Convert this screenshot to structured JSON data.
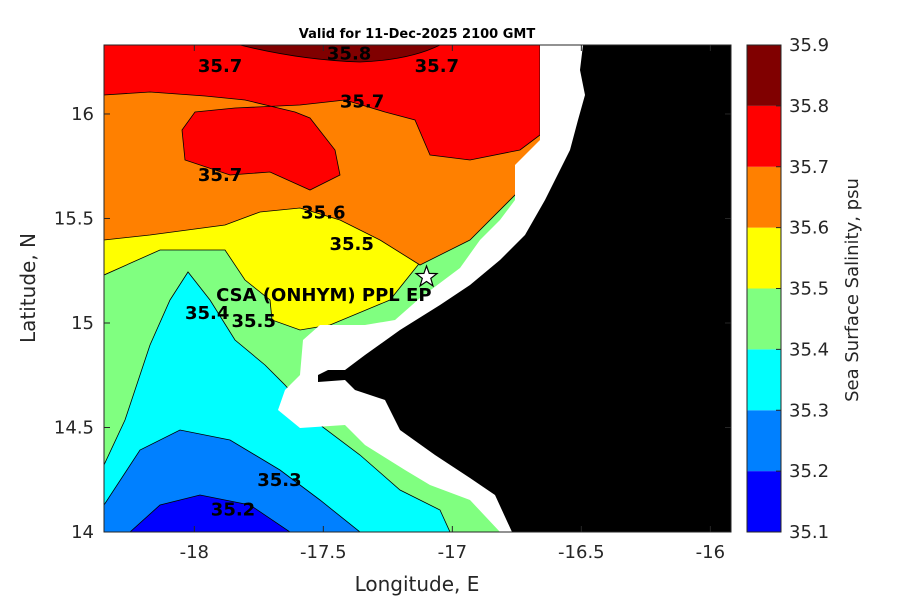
{
  "chart_data": {
    "type": "heatmap",
    "title": "Valid for 11-Dec-2025 2100 GMT",
    "xlabel": "Longitude, E",
    "ylabel": "Latitude, N",
    "xlim": [
      -18.35,
      -15.92
    ],
    "ylim": [
      14.0,
      16.33
    ],
    "x_ticks": [
      -18,
      -17.5,
      -17,
      -16.5,
      -16
    ],
    "x_tick_labels": [
      "-18",
      "-17.5",
      "-17",
      "-16.5",
      "-16"
    ],
    "y_ticks": [
      14,
      14.5,
      15,
      15.5,
      16
    ],
    "y_tick_labels": [
      "14",
      "14.5",
      "15",
      "15.5",
      "16"
    ],
    "colorbar": {
      "label": "Sea Surface Salinity, psu",
      "ticks": [
        "35.1",
        "35.2",
        "35.3",
        "35.4",
        "35.5",
        "35.6",
        "35.7",
        "35.8",
        "35.9"
      ],
      "levels": [
        {
          "min": 35.1,
          "max": 35.2,
          "color": "#0000ff"
        },
        {
          "min": 35.2,
          "max": 35.3,
          "color": "#0080ff"
        },
        {
          "min": 35.3,
          "max": 35.4,
          "color": "#00ffff"
        },
        {
          "min": 35.4,
          "max": 35.5,
          "color": "#80ff80"
        },
        {
          "min": 35.5,
          "max": 35.6,
          "color": "#ffff00"
        },
        {
          "min": 35.6,
          "max": 35.7,
          "color": "#ff8000"
        },
        {
          "min": 35.7,
          "max": 35.8,
          "color": "#ff0000"
        },
        {
          "min": 35.8,
          "max": 35.9,
          "color": "#800000"
        }
      ]
    },
    "contour_labels": [
      {
        "text": "35.8",
        "lon": -17.4,
        "lat": 16.26
      },
      {
        "text": "35.7",
        "lon": -17.9,
        "lat": 16.2
      },
      {
        "text": "35.7",
        "lon": -17.06,
        "lat": 16.2
      },
      {
        "text": "35.7",
        "lon": -17.35,
        "lat": 16.03
      },
      {
        "text": "35.7",
        "lon": -17.9,
        "lat": 15.68
      },
      {
        "text": "35.6",
        "lon": -17.5,
        "lat": 15.5
      },
      {
        "text": "35.5",
        "lon": -17.39,
        "lat": 15.35
      },
      {
        "text": "35.5",
        "lon": -17.77,
        "lat": 14.98
      },
      {
        "text": "35.4",
        "lon": -17.95,
        "lat": 15.02
      },
      {
        "text": "35.3",
        "lon": -17.67,
        "lat": 14.22
      },
      {
        "text": "35.2",
        "lon": -17.85,
        "lat": 14.08
      }
    ],
    "site": {
      "label": "CSA (ONHYM) PPL EP",
      "lon": -17.1,
      "lat": 15.22,
      "marker": "star"
    },
    "land_color": "#000000",
    "grid": false
  }
}
